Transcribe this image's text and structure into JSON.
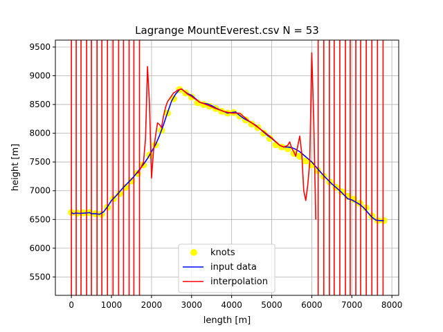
{
  "chart_data": {
    "type": "line",
    "title": "Lagrange MountEverest.csv N = 53",
    "xlabel": "length [m]",
    "ylabel": "height [m]",
    "xlim": [
      -400,
      8170
    ],
    "ylim": [
      5180,
      9620
    ],
    "xticks": [
      0,
      1000,
      2000,
      3000,
      4000,
      5000,
      6000,
      7000,
      8000
    ],
    "yticks": [
      5500,
      6000,
      6500,
      7000,
      7500,
      8000,
      8500,
      9000,
      9500
    ],
    "grid": true,
    "legend": {
      "placement": "lower-center",
      "entries": [
        "knots",
        "input data",
        "interpolation"
      ]
    },
    "colors": {
      "knots": "#ffff00",
      "input_data": "#0000ff",
      "interpolation": "#ff0000"
    },
    "knots": {
      "name": "knots",
      "x": [
        0,
        150,
        300,
        450,
        600,
        750,
        900,
        1050,
        1200,
        1350,
        1500,
        1650,
        1800,
        1950,
        2100,
        2250,
        2400,
        2550,
        2700,
        2850,
        3000,
        3150,
        3300,
        3450,
        3600,
        3750,
        3900,
        4050,
        4200,
        4350,
        4500,
        4650,
        4800,
        4950,
        5100,
        5250,
        5400,
        5550,
        5700,
        5850,
        6000,
        6150,
        6300,
        6450,
        6600,
        6750,
        6900,
        7050,
        7200,
        7350,
        7500,
        7650,
        7800
      ],
      "y": [
        6620,
        6610,
        6615,
        6620,
        6600,
        6590,
        6710,
        6860,
        6950,
        7060,
        7170,
        7300,
        7450,
        7620,
        7800,
        8050,
        8350,
        8600,
        8760,
        8700,
        8630,
        8530,
        8500,
        8470,
        8430,
        8380,
        8350,
        8360,
        8300,
        8230,
        8160,
        8100,
        8000,
        7910,
        7800,
        7760,
        7730,
        7650,
        7600,
        7520,
        7450,
        7350,
        7250,
        7150,
        7060,
        6980,
        6900,
        6850,
        6780,
        6700,
        6560,
        6480,
        6480
      ]
    },
    "input_data": {
      "name": "input data",
      "x": [
        0,
        50,
        100,
        150,
        200,
        300,
        400,
        450,
        500,
        600,
        700,
        750,
        800,
        900,
        1000,
        1100,
        1200,
        1300,
        1400,
        1500,
        1600,
        1700,
        1800,
        1900,
        2000,
        2100,
        2200,
        2300,
        2400,
        2500,
        2600,
        2700,
        2750,
        2800,
        2900,
        3000,
        3100,
        3200,
        3300,
        3400,
        3500,
        3600,
        3700,
        3800,
        3900,
        4000,
        4100,
        4200,
        4300,
        4400,
        4500,
        4600,
        4700,
        4800,
        4900,
        5000,
        5100,
        5200,
        5300,
        5400,
        5500,
        5600,
        5700,
        5800,
        5900,
        6000,
        6100,
        6200,
        6300,
        6400,
        6500,
        6600,
        6700,
        6800,
        6900,
        7000,
        7100,
        7200,
        7300,
        7400,
        7500,
        7600,
        7700,
        7800
      ],
      "y": [
        6620,
        6600,
        6610,
        6610,
        6605,
        6610,
        6615,
        6620,
        6600,
        6600,
        6590,
        6610,
        6630,
        6720,
        6830,
        6900,
        6980,
        7060,
        7130,
        7200,
        7280,
        7370,
        7460,
        7560,
        7680,
        7800,
        7960,
        8150,
        8360,
        8560,
        8680,
        8760,
        8770,
        8740,
        8690,
        8660,
        8600,
        8540,
        8520,
        8510,
        8480,
        8440,
        8410,
        8380,
        8350,
        8360,
        8370,
        8310,
        8260,
        8220,
        8180,
        8140,
        8080,
        8020,
        7960,
        7910,
        7850,
        7790,
        7760,
        7760,
        7750,
        7720,
        7680,
        7620,
        7560,
        7500,
        7420,
        7340,
        7260,
        7190,
        7120,
        7060,
        7000,
        6930,
        6860,
        6840,
        6800,
        6760,
        6700,
        6620,
        6540,
        6490,
        6480,
        6480
      ]
    },
    "interpolation": {
      "name": "interpolation",
      "x": [
        1650,
        1700,
        1750,
        1800,
        1850,
        1900,
        1950,
        2000,
        2050,
        2100,
        2150,
        2200,
        2250,
        2300,
        2350,
        2400,
        2450,
        2500,
        2550,
        2600,
        2650,
        2700,
        2750,
        2800,
        2900,
        3000,
        3200,
        3400,
        3600,
        3800,
        4000,
        4200,
        4400,
        4600,
        4800,
        5000,
        5200,
        5300,
        5400,
        5450,
        5500,
        5550,
        5600,
        5650,
        5700,
        5750,
        5800,
        5850,
        5900,
        5950,
        6000,
        6050,
        6100
      ],
      "y": [
        7300,
        7350,
        7420,
        7500,
        7900,
        9160,
        8500,
        7220,
        7700,
        7950,
        8180,
        8150,
        8100,
        8300,
        8450,
        8550,
        8600,
        8650,
        8700,
        8720,
        8750,
        8760,
        8770,
        8740,
        8680,
        8640,
        8540,
        8490,
        8430,
        8380,
        8350,
        8350,
        8230,
        8130,
        8030,
        7920,
        7790,
        7760,
        7790,
        7850,
        7740,
        7680,
        7600,
        7780,
        7950,
        7650,
        7000,
        6830,
        7100,
        7500,
        9400,
        8200,
        6500
      ]
    },
    "oscillation_x": [
      0,
      120,
      240,
      380,
      500,
      640,
      760,
      900,
      1040,
      1180,
      1300,
      1440,
      1560,
      1700,
      6160,
      6300,
      6440,
      6560,
      6700,
      6840,
      6960,
      7100,
      7220,
      7360,
      7500,
      7640,
      7780
    ]
  }
}
